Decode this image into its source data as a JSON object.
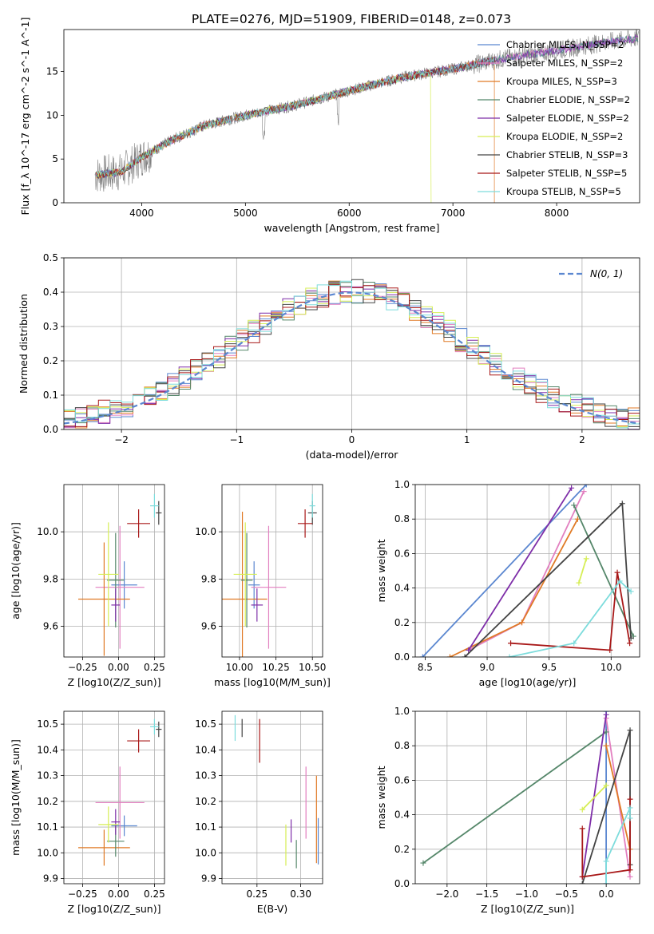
{
  "title": "PLATE=0276, MJD=51909, FIBERID=0148, z=0.073",
  "colors": {
    "chabrier_miles": "#5b87d0",
    "salpeter_miles": "#e27fc0",
    "kroupa_miles": "#e07a26",
    "chabrier_elodie": "#55876a",
    "salpeter_elodie": "#7e2ea8",
    "kroupa_elodie": "#d6ee55",
    "chabrier_stelib": "#444444",
    "salpeter_stelib": "#a81818",
    "kroupa_stelib": "#7ddcdc",
    "normal": "#5b87d0",
    "data": "#808080"
  },
  "chart_data": [
    {
      "id": "spectrum",
      "type": "line",
      "xlabel": "wavelength [Angstrom, rest frame]",
      "ylabel": "Flux [f_λ 10^-17 erg cm^-2 s^-1 A^-1]",
      "xlim": [
        3250,
        8800
      ],
      "ylim": [
        0,
        19.8
      ],
      "xticks": [
        4000,
        5000,
        6000,
        7000,
        8000
      ],
      "yticks": [
        0,
        5,
        10,
        15
      ],
      "legend": {
        "position": "right",
        "entries": [
          {
            "key": "chabrier_miles",
            "label": "Chabrier MILES, N_SSP=2"
          },
          {
            "key": "salpeter_miles",
            "label": "Salpeter MILES, N_SSP=2"
          },
          {
            "key": "kroupa_miles",
            "label": "Kroupa MILES, N_SSP=3"
          },
          {
            "key": "chabrier_elodie",
            "label": "Chabrier ELODIE, N_SSP=2"
          },
          {
            "key": "salpeter_elodie",
            "label": "Salpeter ELODIE, N_SSP=2"
          },
          {
            "key": "kroupa_elodie",
            "label": "Kroupa ELODIE, N_SSP=2"
          },
          {
            "key": "chabrier_stelib",
            "label": "Chabrier STELIB, N_SSP=3"
          },
          {
            "key": "salpeter_stelib",
            "label": "Salpeter STELIB, N_SSP=5"
          },
          {
            "key": "kroupa_stelib",
            "label": "Kroupa STELIB, N_SSP=5"
          }
        ]
      },
      "continuum": [
        [
          3550,
          3.2
        ],
        [
          3800,
          3.5
        ],
        [
          4000,
          5.2
        ],
        [
          4300,
          7.2
        ],
        [
          4600,
          8.8
        ],
        [
          5000,
          10.0
        ],
        [
          5500,
          11.2
        ],
        [
          6000,
          12.8
        ],
        [
          6500,
          14.3
        ],
        [
          7000,
          15.3
        ],
        [
          7500,
          16.5
        ],
        [
          8000,
          17.4
        ],
        [
          8500,
          18.4
        ],
        [
          8800,
          18.8
        ]
      ]
    },
    {
      "id": "residuals",
      "type": "histogram",
      "xlabel": "(data-model)/error",
      "ylabel": "Normed distribution",
      "xlim": [
        -2.5,
        2.5
      ],
      "ylim": [
        0,
        0.5
      ],
      "xticks": [
        -2,
        -1,
        0,
        1,
        2
      ],
      "yticks": [
        0.0,
        0.1,
        0.2,
        0.3,
        0.4,
        0.5
      ],
      "legend": {
        "position": "top-right",
        "label": "N(0, 1)"
      },
      "bin_width": 0.1
    },
    {
      "id": "age_vs_Z",
      "type": "scatter",
      "xlabel": "Z [log10(Z/Z_sun)]",
      "ylabel": "age [log10(age/yr)]",
      "xlim": [
        -0.38,
        0.32
      ],
      "ylim": [
        9.47,
        10.2
      ],
      "xticks": [
        -0.25,
        0.0,
        0.25
      ],
      "yticks": [
        9.6,
        9.8,
        10.0
      ],
      "series": [
        {
          "key": "chabrier_miles",
          "x": 0.04,
          "xerr": 0.09,
          "y": 9.775,
          "yerr": 0.1
        },
        {
          "key": "salpeter_miles",
          "x": 0.01,
          "xerr": 0.17,
          "y": 9.765,
          "yerr": 0.26
        },
        {
          "key": "kroupa_miles",
          "x": -0.1,
          "xerr": 0.18,
          "y": 9.715,
          "yerr": 0.24
        },
        {
          "key": "chabrier_elodie",
          "x": -0.02,
          "xerr": 0.06,
          "y": 9.795,
          "yerr": 0.2
        },
        {
          "key": "salpeter_elodie",
          "x": -0.02,
          "xerr": 0.03,
          "y": 9.69,
          "yerr": 0.07
        },
        {
          "key": "kroupa_elodie",
          "x": -0.07,
          "xerr": 0.07,
          "y": 9.82,
          "yerr": 0.22
        },
        {
          "key": "chabrier_stelib",
          "x": 0.28,
          "xerr": 0.02,
          "y": 10.08,
          "yerr": 0.05
        },
        {
          "key": "salpeter_stelib",
          "x": 0.14,
          "xerr": 0.08,
          "y": 10.035,
          "yerr": 0.06
        },
        {
          "key": "kroupa_stelib",
          "x": 0.25,
          "xerr": 0.03,
          "y": 10.11,
          "yerr": 0.05
        }
      ]
    },
    {
      "id": "age_vs_mass",
      "type": "scatter",
      "xlabel": "mass [log10(M/M_sun)]",
      "ylabel": "",
      "xlim": [
        9.88,
        10.57
      ],
      "ylim": [
        9.47,
        10.2
      ],
      "xticks": [
        10.0,
        10.25,
        10.5
      ],
      "yticks": [
        9.6,
        9.8,
        10.0
      ],
      "series": [
        {
          "key": "chabrier_miles",
          "x": 10.1,
          "xerr": 0.04,
          "y": 9.775,
          "yerr": 0.1
        },
        {
          "key": "salpeter_miles",
          "x": 10.2,
          "xerr": 0.12,
          "y": 9.765,
          "yerr": 0.26
        },
        {
          "key": "kroupa_miles",
          "x": 10.02,
          "xerr": 0.17,
          "y": 9.715,
          "yerr": 0.37
        },
        {
          "key": "chabrier_elodie",
          "x": 10.05,
          "xerr": 0.04,
          "y": 9.795,
          "yerr": 0.2
        },
        {
          "key": "salpeter_elodie",
          "x": 10.12,
          "xerr": 0.04,
          "y": 9.69,
          "yerr": 0.07
        },
        {
          "key": "kroupa_elodie",
          "x": 10.04,
          "xerr": 0.08,
          "y": 9.82,
          "yerr": 0.22
        },
        {
          "key": "chabrier_stelib",
          "x": 10.5,
          "xerr": 0.03,
          "y": 10.08,
          "yerr": 0.05
        },
        {
          "key": "salpeter_stelib",
          "x": 10.45,
          "xerr": 0.05,
          "y": 10.035,
          "yerr": 0.06
        },
        {
          "key": "kroupa_stelib",
          "x": 10.5,
          "xerr": 0.02,
          "y": 10.11,
          "yerr": 0.05
        }
      ]
    },
    {
      "id": "weight_vs_age",
      "type": "line",
      "xlabel": "age [log10(age/yr)]",
      "ylabel": "mass weight",
      "xlim": [
        8.42,
        10.23
      ],
      "ylim": [
        0,
        1
      ],
      "xticks": [
        8.5,
        9.0,
        9.5,
        10.0
      ],
      "yticks": [
        0.0,
        0.2,
        0.4,
        0.6,
        0.8,
        1.0
      ],
      "series": [
        {
          "key": "chabrier_miles",
          "points": [
            [
              8.48,
              0.0
            ],
            [
              9.8,
              1.0
            ]
          ]
        },
        {
          "key": "salpeter_miles",
          "points": [
            [
              8.85,
              0.04
            ],
            [
              9.28,
              0.2
            ],
            [
              9.78,
              0.96
            ]
          ]
        },
        {
          "key": "kroupa_miles",
          "points": [
            [
              8.7,
              0.0
            ],
            [
              9.28,
              0.2
            ],
            [
              9.73,
              0.8
            ]
          ]
        },
        {
          "key": "chabrier_elodie",
          "points": [
            [
              9.7,
              0.88
            ],
            [
              10.18,
              0.12
            ]
          ]
        },
        {
          "key": "salpeter_elodie",
          "points": [
            [
              8.85,
              0.04
            ],
            [
              9.68,
              0.98
            ]
          ]
        },
        {
          "key": "kroupa_elodie",
          "points": [
            [
              9.74,
              0.43
            ],
            [
              9.8,
              0.57
            ]
          ]
        },
        {
          "key": "chabrier_stelib",
          "points": [
            [
              8.82,
              0.0
            ],
            [
              10.09,
              0.89
            ],
            [
              10.16,
              0.11
            ]
          ]
        },
        {
          "key": "salpeter_stelib",
          "points": [
            [
              9.19,
              0.08
            ],
            [
              9.99,
              0.04
            ],
            [
              10.05,
              0.49
            ],
            [
              10.15,
              0.08
            ]
          ]
        },
        {
          "key": "kroupa_stelib",
          "points": [
            [
              9.18,
              0.0
            ],
            [
              9.7,
              0.08
            ],
            [
              10.07,
              0.44
            ],
            [
              10.16,
              0.38
            ]
          ]
        }
      ]
    },
    {
      "id": "mass_vs_Z",
      "type": "scatter",
      "xlabel": "Z [log10(Z/Z_sun)]",
      "ylabel": "mass [log10(M/M_sun)]",
      "xlim": [
        -0.38,
        0.32
      ],
      "ylim": [
        9.88,
        10.55
      ],
      "xticks": [
        -0.25,
        0.0,
        0.25
      ],
      "yticks": [
        9.9,
        10.0,
        10.1,
        10.2,
        10.3,
        10.4,
        10.5
      ],
      "series": [
        {
          "key": "chabrier_miles",
          "x": 0.04,
          "xerr": 0.09,
          "y": 10.105,
          "yerr": 0.04
        },
        {
          "key": "salpeter_miles",
          "x": 0.01,
          "xerr": 0.17,
          "y": 10.195,
          "yerr": 0.14
        },
        {
          "key": "kroupa_miles",
          "x": -0.1,
          "xerr": 0.18,
          "y": 10.02,
          "yerr": 0.07
        },
        {
          "key": "chabrier_elodie",
          "x": -0.02,
          "xerr": 0.06,
          "y": 10.045,
          "yerr": 0.06
        },
        {
          "key": "salpeter_elodie",
          "x": -0.02,
          "xerr": 0.03,
          "y": 10.12,
          "yerr": 0.05
        },
        {
          "key": "kroupa_elodie",
          "x": -0.07,
          "xerr": 0.07,
          "y": 10.11,
          "yerr": 0.07
        },
        {
          "key": "chabrier_stelib",
          "x": 0.28,
          "xerr": 0.02,
          "y": 10.48,
          "yerr": 0.03
        },
        {
          "key": "salpeter_stelib",
          "x": 0.14,
          "xerr": 0.08,
          "y": 10.435,
          "yerr": 0.045
        },
        {
          "key": "kroupa_stelib",
          "x": 0.25,
          "xerr": 0.03,
          "y": 10.49,
          "yerr": 0.03
        }
      ]
    },
    {
      "id": "mass_vs_ebv",
      "type": "scatter",
      "xlabel": "E(B-V)",
      "ylabel": "",
      "xlim": [
        0.21,
        0.325
      ],
      "ylim": [
        9.88,
        10.55
      ],
      "xticks": [
        0.25,
        0.3
      ],
      "yticks": [
        9.9,
        10.0,
        10.1,
        10.2,
        10.3,
        10.4,
        10.5
      ],
      "series": [
        {
          "key": "chabrier_miles",
          "x": 0.32,
          "y": 10.045,
          "yerr": 0.09
        },
        {
          "key": "salpeter_miles",
          "x": 0.306,
          "y": 10.195,
          "yerr": 0.14
        },
        {
          "key": "kroupa_miles",
          "x": 0.318,
          "y": 10.13,
          "yerr": 0.17
        },
        {
          "key": "chabrier_elodie",
          "x": 0.295,
          "y": 9.995,
          "yerr": 0.055
        },
        {
          "key": "salpeter_elodie",
          "x": 0.289,
          "y": 10.085,
          "yerr": 0.045
        },
        {
          "key": "kroupa_elodie",
          "x": 0.283,
          "y": 10.03,
          "yerr": 0.08
        },
        {
          "key": "chabrier_stelib",
          "x": 0.233,
          "y": 10.485,
          "yerr": 0.035
        },
        {
          "key": "salpeter_stelib",
          "x": 0.253,
          "y": 10.435,
          "yerr": 0.085
        },
        {
          "key": "kroupa_stelib",
          "x": 0.225,
          "y": 10.485,
          "yerr": 0.05
        }
      ]
    },
    {
      "id": "weight_vs_Z",
      "type": "line",
      "xlabel": "Z [log10(Z/Z_sun)]",
      "ylabel": "mass weight",
      "xlim": [
        -2.4,
        0.42
      ],
      "ylim": [
        0,
        1
      ],
      "xticks": [
        -2.0,
        -1.5,
        -1.0,
        -0.5,
        0.0
      ],
      "yticks": [
        0.0,
        0.2,
        0.4,
        0.6,
        0.8,
        1.0
      ],
      "series": [
        {
          "key": "chabrier_miles",
          "points": [
            [
              0.0,
              0.0
            ],
            [
              0.0,
              1.0
            ]
          ]
        },
        {
          "key": "salpeter_miles",
          "points": [
            [
              0.0,
              0.96
            ],
            [
              0.3,
              0.04
            ]
          ]
        },
        {
          "key": "kroupa_miles",
          "points": [
            [
              0.0,
              0.8
            ],
            [
              0.3,
              0.2
            ]
          ]
        },
        {
          "key": "chabrier_elodie",
          "points": [
            [
              -2.3,
              0.12
            ],
            [
              0.0,
              0.88
            ]
          ]
        },
        {
          "key": "salpeter_elodie",
          "points": [
            [
              -0.3,
              0.04
            ],
            [
              0.0,
              0.98
            ]
          ]
        },
        {
          "key": "kroupa_elodie",
          "points": [
            [
              -0.3,
              0.43
            ],
            [
              0.0,
              0.57
            ]
          ]
        },
        {
          "key": "chabrier_stelib",
          "points": [
            [
              -0.3,
              0.0
            ],
            [
              0.3,
              0.89
            ],
            [
              0.3,
              0.11
            ]
          ]
        },
        {
          "key": "salpeter_stelib",
          "points": [
            [
              -0.3,
              0.32
            ],
            [
              -0.3,
              0.04
            ],
            [
              0.3,
              0.08
            ],
            [
              0.3,
              0.49
            ]
          ]
        },
        {
          "key": "kroupa_stelib",
          "points": [
            [
              0.0,
              0.0
            ],
            [
              0.0,
              0.13
            ],
            [
              0.3,
              0.44
            ],
            [
              0.3,
              0.38
            ]
          ]
        }
      ]
    }
  ]
}
